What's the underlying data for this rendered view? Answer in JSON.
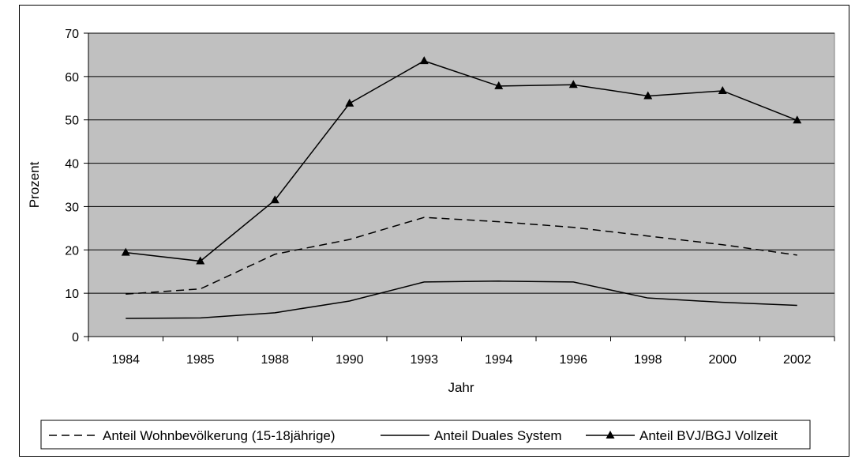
{
  "chart_data": {
    "type": "line",
    "categories": [
      "1984",
      "1985",
      "1988",
      "1990",
      "1993",
      "1994",
      "1996",
      "1998",
      "2000",
      "2002"
    ],
    "series": [
      {
        "name": "Anteil Wohnbevölkerung (15-18jährige)",
        "style": "dashed",
        "marker": "none",
        "values": [
          9.8,
          11.0,
          19.0,
          22.4,
          27.5,
          26.5,
          25.2,
          23.2,
          21.2,
          18.8
        ]
      },
      {
        "name": "Anteil Duales System",
        "style": "solid",
        "marker": "none",
        "values": [
          4.2,
          4.3,
          5.5,
          8.2,
          12.6,
          12.8,
          12.6,
          8.9,
          7.9,
          7.2
        ]
      },
      {
        "name": "Anteil BVJ/BGJ Vollzeit",
        "style": "solid",
        "marker": "triangle",
        "values": [
          19.4,
          17.4,
          31.5,
          53.8,
          63.6,
          57.8,
          58.1,
          55.5,
          56.7,
          49.9
        ]
      }
    ],
    "xlabel": "Jahr",
    "ylabel": "Prozent",
    "ylim": [
      0,
      70
    ],
    "yticks": [
      0,
      10,
      20,
      30,
      40,
      50,
      60,
      70
    ],
    "grid": "horizontal",
    "plot_background": "#c0c0c0",
    "line_color": "#000000",
    "legend_position": "bottom"
  }
}
